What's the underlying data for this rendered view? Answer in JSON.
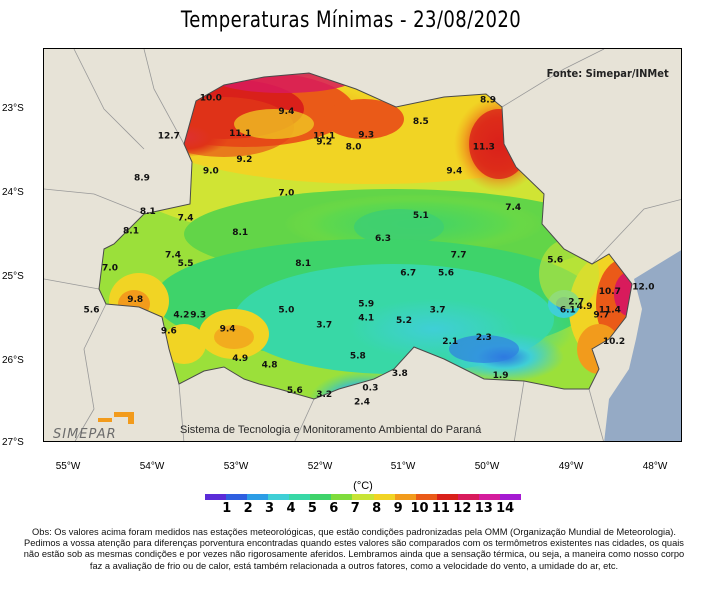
{
  "title": "Temperaturas Mínimas - 23/08/2020",
  "source": "Fonte: Simepar/INMet",
  "latitude_labels": [
    "23°S",
    "24°S",
    "25°S",
    "26°S",
    "27°S"
  ],
  "longitude_labels": [
    "55°W",
    "54°W",
    "53°W",
    "52°W",
    "51°W",
    "50°W",
    "49°W",
    "48°W"
  ],
  "logo": "SIMEPAR",
  "institution": "Sistema de Tecnologia e Monitoramento Ambiental do Paraná",
  "unit": "(°C)",
  "colors": {
    "ocean": "#95aac5",
    "land_outside": "#e7e3d7",
    "scale": [
      "#5b2cd8",
      "#2f5fe0",
      "#2c9de6",
      "#3fcfd6",
      "#38d8a6",
      "#3ed36a",
      "#7fdc3c",
      "#c8e436",
      "#f1d424",
      "#f29b1c",
      "#ea5a18",
      "#d9201a",
      "#d81b5c",
      "#d41d9c",
      "#a51ad2"
    ]
  },
  "scale_ticks": [
    "1",
    "2",
    "3",
    "4",
    "5",
    "6",
    "7",
    "8",
    "9",
    "10",
    "11",
    "12",
    "13",
    "14"
  ],
  "values": [
    {
      "lon": -53.3,
      "lat": -22.9,
      "v": "10.0"
    },
    {
      "lon": -52.4,
      "lat": -23.06,
      "v": "9.4"
    },
    {
      "lon": -53.8,
      "lat": -23.35,
      "v": "12.7"
    },
    {
      "lon": -52.95,
      "lat": -23.32,
      "v": "11.1"
    },
    {
      "lon": -51.95,
      "lat": -23.35,
      "v": "11.1"
    },
    {
      "lon": -51.95,
      "lat": -23.42,
      "v": "9.2"
    },
    {
      "lon": -51.45,
      "lat": -23.34,
      "v": "9.3"
    },
    {
      "lon": -50.8,
      "lat": -23.18,
      "v": "8.5"
    },
    {
      "lon": -50.0,
      "lat": -22.92,
      "v": "8.9"
    },
    {
      "lon": -50.05,
      "lat": -23.48,
      "v": "11.3"
    },
    {
      "lon": -51.6,
      "lat": -23.48,
      "v": "8.0"
    },
    {
      "lon": -52.9,
      "lat": -23.63,
      "v": "9.2"
    },
    {
      "lon": -53.3,
      "lat": -23.77,
      "v": "9.0"
    },
    {
      "lon": -54.12,
      "lat": -23.85,
      "v": "8.9"
    },
    {
      "lon": -50.4,
      "lat": -23.77,
      "v": "9.4"
    },
    {
      "lon": -52.4,
      "lat": -24.03,
      "v": "7.0"
    },
    {
      "lon": -49.7,
      "lat": -24.2,
      "v": "7.4"
    },
    {
      "lon": -54.05,
      "lat": -24.25,
      "v": "8.1"
    },
    {
      "lon": -53.6,
      "lat": -24.33,
      "v": "7.4"
    },
    {
      "lon": -50.8,
      "lat": -24.3,
      "v": "5.1"
    },
    {
      "lon": -54.25,
      "lat": -24.48,
      "v": "8.1"
    },
    {
      "lon": -52.95,
      "lat": -24.5,
      "v": "8.1"
    },
    {
      "lon": -51.25,
      "lat": -24.57,
      "v": "6.3"
    },
    {
      "lon": -53.75,
      "lat": -24.77,
      "v": "7.4"
    },
    {
      "lon": -53.6,
      "lat": -24.87,
      "v": "5.5"
    },
    {
      "lon": -54.5,
      "lat": -24.92,
      "v": "7.0"
    },
    {
      "lon": -52.2,
      "lat": -24.87,
      "v": "8.1"
    },
    {
      "lon": -50.35,
      "lat": -24.77,
      "v": "7.7"
    },
    {
      "lon": -49.2,
      "lat": -24.83,
      "v": "5.6"
    },
    {
      "lon": -50.95,
      "lat": -24.98,
      "v": "6.7"
    },
    {
      "lon": -50.5,
      "lat": -24.98,
      "v": "5.6"
    },
    {
      "lon": -48.55,
      "lat": -25.2,
      "v": "10.7"
    },
    {
      "lon": -48.15,
      "lat": -25.15,
      "v": "12.0"
    },
    {
      "lon": -54.2,
      "lat": -25.3,
      "v": "9.8"
    },
    {
      "lon": -54.72,
      "lat": -25.42,
      "v": "5.6"
    },
    {
      "lon": -52.4,
      "lat": -25.42,
      "v": "5.0"
    },
    {
      "lon": -51.45,
      "lat": -25.35,
      "v": "5.9"
    },
    {
      "lon": -48.95,
      "lat": -25.33,
      "v": "2.7"
    },
    {
      "lon": -48.85,
      "lat": -25.38,
      "v": "4.9"
    },
    {
      "lon": -49.05,
      "lat": -25.42,
      "v": "6.1"
    },
    {
      "lon": -48.55,
      "lat": -25.42,
      "v": "11.4"
    },
    {
      "lon": -53.65,
      "lat": -25.48,
      "v": "4.2"
    },
    {
      "lon": -53.45,
      "lat": -25.48,
      "v": "9.3"
    },
    {
      "lon": -51.45,
      "lat": -25.52,
      "v": "4.1"
    },
    {
      "lon": -51.0,
      "lat": -25.55,
      "v": "5.2"
    },
    {
      "lon": -50.6,
      "lat": -25.42,
      "v": "3.7"
    },
    {
      "lon": -48.65,
      "lat": -25.48,
      "v": "9.7"
    },
    {
      "lon": -51.95,
      "lat": -25.6,
      "v": "3.7"
    },
    {
      "lon": -53.8,
      "lat": -25.67,
      "v": "9.6"
    },
    {
      "lon": -53.1,
      "lat": -25.65,
      "v": "9.4"
    },
    {
      "lon": -50.05,
      "lat": -25.75,
      "v": "2.3"
    },
    {
      "lon": -50.45,
      "lat": -25.8,
      "v": "2.1"
    },
    {
      "lon": -48.5,
      "lat": -25.8,
      "v": "10.2"
    },
    {
      "lon": -51.55,
      "lat": -25.97,
      "v": "5.8"
    },
    {
      "lon": -52.95,
      "lat": -26.0,
      "v": "4.9"
    },
    {
      "lon": -52.6,
      "lat": -26.08,
      "v": "4.8"
    },
    {
      "lon": -51.05,
      "lat": -26.18,
      "v": "3.8"
    },
    {
      "lon": -49.85,
      "lat": -26.2,
      "v": "1.9"
    },
    {
      "lon": -51.4,
      "lat": -26.35,
      "v": "0.3"
    },
    {
      "lon": -52.3,
      "lat": -26.38,
      "v": "5.6"
    },
    {
      "lon": -51.95,
      "lat": -26.43,
      "v": "3.2"
    },
    {
      "lon": -51.5,
      "lat": -26.52,
      "v": "2.4"
    }
  ],
  "note": "Obs: Os valores acima foram medidos nas estações meteorológicas, que estão condições padronizadas pela OMM (Organização Mundial de Meteorologia). Pedimos a vossa atenção para diferenças porventura encontradas quando estes valores são comparados com os termômetros existentes nas cidades, os quais não estão sob as mesmas condições e por vezes não rigorosamente aferidos. Lembramos ainda que a sensação térmica, ou seja, a maneira como nosso corpo faz a avaliação de frio ou de calor, está também relacionada a outros fatores, como a velocidade do vento, a umidade do ar, etc."
}
